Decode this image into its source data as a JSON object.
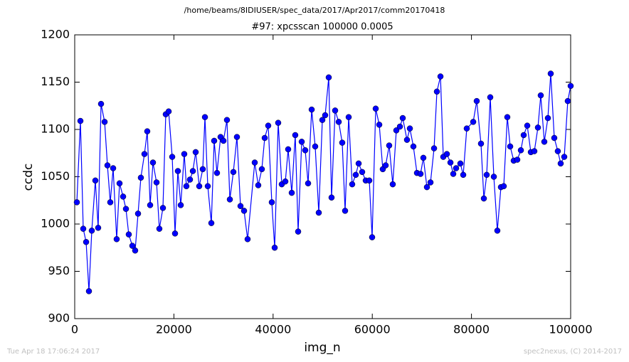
{
  "header": {
    "path": "/home/beams/8IDIUSER/spec_data/2017/Apr2017/comm20170418"
  },
  "footer": {
    "timestamp": "Tue Apr 18 17:06:24 2017",
    "credit": "spec2nexus, (C) 2014-2017"
  },
  "chart_data": {
    "type": "line",
    "title": "#97: xpcsscan 100000 0.0005",
    "x_label": "img_n",
    "y_label": "ccdc",
    "color": "#0000ff",
    "markers": true,
    "xlim": [
      0,
      100000
    ],
    "xticks": [
      0,
      20000,
      40000,
      60000,
      80000,
      100000
    ],
    "ylim": [
      900,
      1200
    ],
    "yticks": [
      900,
      950,
      1000,
      1050,
      1100,
      1150,
      1200
    ],
    "x": [
      430,
      1150,
      1720,
      2300,
      2870,
      3440,
      4160,
      4730,
      5310,
      6030,
      6600,
      7170,
      7750,
      8460,
      9040,
      9760,
      10330,
      10900,
      11620,
      12190,
      12770,
      13340,
      14060,
      14630,
      15210,
      15780,
      16500,
      17070,
      17790,
      18360,
      18940,
      19660,
      20230,
      20800,
      21380,
      22090,
      22520,
      23240,
      23820,
      24390,
      25110,
      25820,
      26260,
      26830,
      27550,
      28120,
      28690,
      29410,
      29990,
      30700,
      31280,
      31990,
      32710,
      33430,
      34150,
      34860,
      36300,
      37010,
      37730,
      38310,
      39020,
      39740,
      40320,
      41030,
      41750,
      42470,
      43040,
      43760,
      44470,
      45050,
      45770,
      46480,
      47060,
      47780,
      48490,
      49210,
      49930,
      50500,
      51220,
      51790,
      52510,
      53230,
      53940,
      54520,
      55240,
      55950,
      56670,
      57250,
      57960,
      58680,
      59400,
      59970,
      60690,
      61410,
      62120,
      62700,
      63410,
      64130,
      64850,
      65570,
      66140,
      67000,
      67580,
      68290,
      69010,
      69730,
      70300,
      71020,
      71740,
      72460,
      73030,
      73750,
      74320,
      75040,
      75760,
      76330,
      76900,
      77760,
      78340,
      79050,
      80350,
      81060,
      81920,
      82500,
      83070,
      83790,
      84510,
      85220,
      85940,
      86510,
      87230,
      87810,
      88520,
      89240,
      89960,
      90530,
      91250,
      91970,
      92680,
      93400,
      93970,
      94690,
      95410,
      95980,
      96700,
      97410,
      97990,
      98710,
      99420,
      100000
    ],
    "values": [
      1023,
      1109,
      995,
      981,
      929,
      993,
      1046,
      996,
      1127,
      1108,
      1062,
      1023,
      1059,
      984,
      1043,
      1029,
      1016,
      989,
      977,
      972,
      1011,
      1049,
      1074,
      1098,
      1020,
      1065,
      1044,
      995,
      1017,
      1116,
      1119,
      1071,
      990,
      1056,
      1020,
      1074,
      1040,
      1047,
      1056,
      1076,
      1040,
      1058,
      1113,
      1040,
      1001,
      1088,
      1054,
      1092,
      1088,
      1110,
      1026,
      1055,
      1092,
      1019,
      1014,
      984,
      1065,
      1041,
      1058,
      1091,
      1104,
      1023,
      975,
      1107,
      1042,
      1045,
      1079,
      1033,
      1094,
      992,
      1087,
      1078,
      1043,
      1121,
      1082,
      1012,
      1110,
      1115,
      1155,
      1028,
      1120,
      1108,
      1086,
      1014,
      1113,
      1042,
      1052,
      1064,
      1055,
      1046,
      1046,
      986,
      1122,
      1105,
      1058,
      1062,
      1083,
      1042,
      1099,
      1103,
      1112,
      1089,
      1101,
      1082,
      1054,
      1053,
      1070,
      1039,
      1044,
      1080,
      1140,
      1156,
      1071,
      1074,
      1065,
      1053,
      1059,
      1064,
      1052,
      1101,
      1108,
      1130,
      1085,
      1027,
      1052,
      1134,
      1050,
      993,
      1039,
      1040,
      1113,
      1082,
      1067,
      1068,
      1078,
      1094,
      1104,
      1076,
      1077,
      1102,
      1136,
      1087,
      1112,
      1159,
      1091,
      1077,
      1064,
      1071,
      1130,
      1146
    ]
  }
}
